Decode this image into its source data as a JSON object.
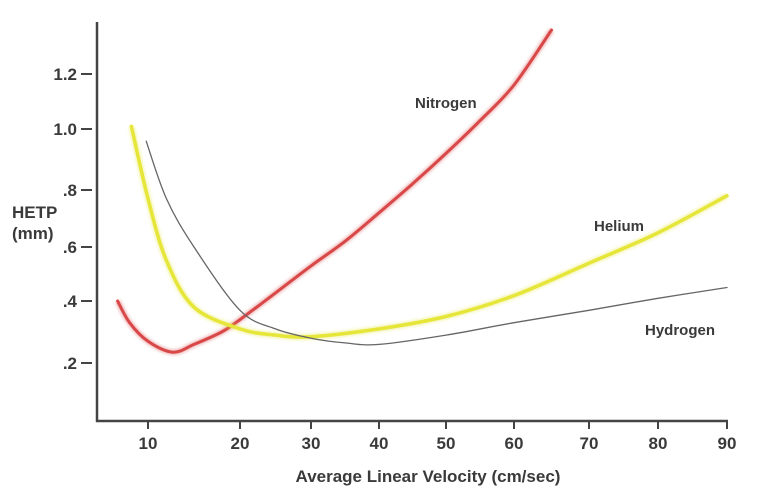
{
  "chart_data": {
    "type": "line",
    "title": "",
    "xlabel": "Average Linear Velocity (cm/sec)",
    "ylabel": "HETP\n(mm)",
    "ylabel_lines": [
      "HETP",
      "(mm)"
    ],
    "xlim": [
      5,
      90
    ],
    "ylim": [
      0,
      1.35
    ],
    "x_ticks": [
      10,
      20,
      30,
      40,
      50,
      60,
      70,
      80,
      90
    ],
    "x_tick_labels": [
      "10",
      "20",
      "30",
      "40",
      "50",
      "60",
      "70",
      "80",
      "90"
    ],
    "y_ticks": [
      0.2,
      0.4,
      0.6,
      0.8,
      1.0,
      1.2
    ],
    "y_tick_labels": [
      ".2",
      ".4",
      ".6",
      ".8",
      "1.0",
      "1.2"
    ],
    "grid": false,
    "legend": "none (series labeled directly on curves)",
    "series": [
      {
        "name": "Nitrogen",
        "color": "#d94848",
        "x": [
          6.7,
          8,
          10,
          12.7,
          15,
          18,
          20,
          25,
          30,
          35,
          40,
          45,
          50,
          55,
          60,
          65
        ],
        "y": [
          0.4,
          0.33,
          0.27,
          0.235,
          0.26,
          0.3,
          0.34,
          0.43,
          0.53,
          0.62,
          0.72,
          0.82,
          0.92,
          1.03,
          1.16,
          1.36
        ]
      },
      {
        "name": "Helium",
        "color": "#e6e63a",
        "x": [
          8.2,
          10,
          12,
          15,
          20,
          25,
          30,
          40,
          50,
          60,
          70,
          80,
          90
        ],
        "y": [
          1.01,
          0.77,
          0.55,
          0.38,
          0.31,
          0.29,
          0.285,
          0.31,
          0.35,
          0.42,
          0.54,
          0.65,
          0.78
        ]
      },
      {
        "name": "Hydrogen",
        "color": "#666666",
        "x": [
          9.8,
          12,
          15,
          20,
          25,
          30,
          35,
          40,
          50,
          60,
          70,
          80,
          90
        ],
        "y": [
          0.96,
          0.77,
          0.6,
          0.37,
          0.31,
          0.28,
          0.265,
          0.26,
          0.29,
          0.33,
          0.37,
          0.41,
          0.45
        ]
      }
    ]
  }
}
